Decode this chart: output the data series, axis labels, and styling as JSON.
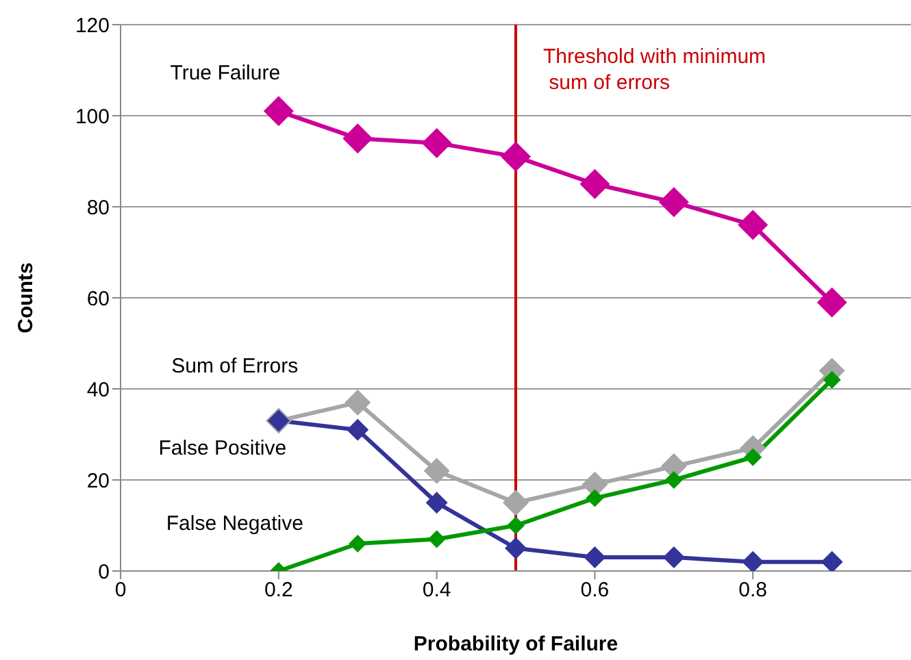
{
  "chart_data": {
    "type": "line",
    "xlabel": "Probability of Failure",
    "ylabel": "Counts",
    "x": [
      0.2,
      0.3,
      0.4,
      0.5,
      0.6,
      0.7,
      0.8,
      0.9
    ],
    "series": [
      {
        "name": "True Failure",
        "color": "#cc0099",
        "values": [
          101,
          95,
          94,
          91,
          85,
          81,
          76,
          59
        ]
      },
      {
        "name": "Sum of Errors",
        "color": "#a6a6a6",
        "values": [
          33,
          37,
          22,
          15,
          19,
          23,
          27,
          44
        ]
      },
      {
        "name": "False Positive",
        "color": "#333399",
        "values": [
          33,
          31,
          15,
          5,
          3,
          3,
          2,
          2
        ]
      },
      {
        "name": "False Negative",
        "color": "#009900",
        "values": [
          0,
          6,
          7,
          10,
          16,
          20,
          25,
          42
        ]
      }
    ],
    "xlim": [
      0,
      1
    ],
    "xticks": [
      0,
      0.2,
      0.4,
      0.6,
      0.8
    ],
    "ylim": [
      0,
      120
    ],
    "yticks": [
      0,
      20,
      40,
      60,
      80,
      100,
      120
    ],
    "ref_lines": [
      {
        "axis": "x",
        "value": 0.5,
        "label": "Threshold with minimum\n sum of errors",
        "color": "#cc0000"
      }
    ],
    "grid": "y",
    "marker": "diamond",
    "line_style": "solid"
  }
}
